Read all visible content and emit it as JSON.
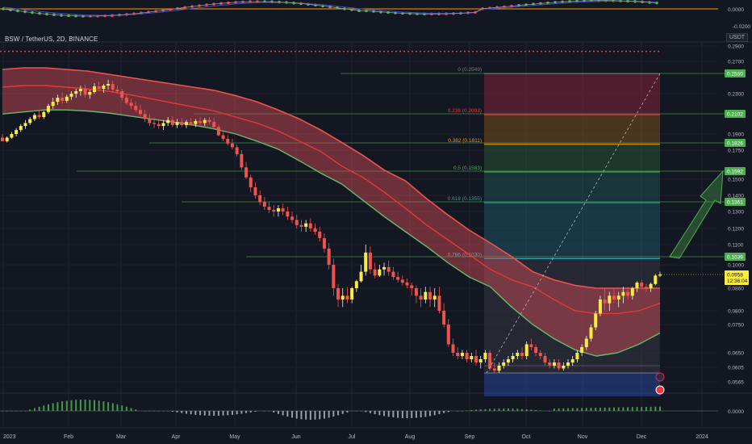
{
  "header": {
    "symbol": "BSW / TetherUS, 2D, BINANCE",
    "unit": "USDT"
  },
  "oscillator_top": {
    "ticks": [
      "0.0000",
      "-0.0200"
    ]
  },
  "oscillator_bottom": {
    "ticks": [
      "0.0000"
    ]
  },
  "price_axis": {
    "ticks": [
      {
        "value": 0.29,
        "label": "0.2900"
      },
      {
        "value": 0.27,
        "label": "0.2700"
      },
      {
        "value": 0.23,
        "label": "0.2300"
      },
      {
        "value": 0.19,
        "label": "0.1900"
      },
      {
        "value": 0.175,
        "label": "0.1750"
      },
      {
        "value": 0.15,
        "label": "0.1500"
      },
      {
        "value": 0.14,
        "label": "0.1400"
      },
      {
        "value": 0.13,
        "label": "0.1300"
      },
      {
        "value": 0.12,
        "label": "0.1200"
      },
      {
        "value": 0.11,
        "label": "0.1100"
      },
      {
        "value": 0.1,
        "label": "0.1000"
      },
      {
        "value": 0.086,
        "label": "0.0860"
      },
      {
        "value": 0.08,
        "label": "0.0800"
      },
      {
        "value": 0.075,
        "label": "0.0750"
      },
      {
        "value": 0.065,
        "label": "0.0650"
      },
      {
        "value": 0.0605,
        "label": "0.0605"
      },
      {
        "value": 0.0565,
        "label": "0.0565"
      }
    ],
    "level_badges": [
      {
        "value": 0.255,
        "label": "0.2550"
      },
      {
        "value": 0.2102,
        "label": "0.2102"
      },
      {
        "value": 0.1826,
        "label": "0.1826"
      },
      {
        "value": 0.1592,
        "label": "0.1592"
      },
      {
        "value": 0.1361,
        "label": "0.1361"
      },
      {
        "value": 0.1039,
        "label": "0.1039"
      }
    ],
    "current_price": {
      "value": 0.0958,
      "label": "0.0958",
      "countdown": "12:36:04",
      "color": "#ffeb3b"
    }
  },
  "time_axis": {
    "labels": [
      "2023",
      "Feb",
      "Mar",
      "Apr",
      "May",
      "Jun",
      "Jul",
      "Aug",
      "Sep",
      "Oct",
      "Nov",
      "Dec",
      "2024"
    ]
  },
  "chart_data": {
    "type": "candlestick",
    "title": "BSW / TetherUS, 2D, BINANCE",
    "ylim": [
      0.0535,
      0.31
    ],
    "candles": [
      [
        0.187,
        0.19,
        0.184,
        0.184
      ],
      [
        0.184,
        0.188,
        0.183,
        0.187
      ],
      [
        0.187,
        0.192,
        0.186,
        0.19
      ],
      [
        0.19,
        0.196,
        0.188,
        0.194
      ],
      [
        0.194,
        0.2,
        0.192,
        0.198
      ],
      [
        0.198,
        0.204,
        0.195,
        0.201
      ],
      [
        0.201,
        0.207,
        0.199,
        0.205
      ],
      [
        0.205,
        0.211,
        0.203,
        0.209
      ],
      [
        0.209,
        0.214,
        0.205,
        0.207
      ],
      [
        0.207,
        0.213,
        0.205,
        0.212
      ],
      [
        0.212,
        0.22,
        0.21,
        0.218
      ],
      [
        0.218,
        0.226,
        0.215,
        0.222
      ],
      [
        0.222,
        0.229,
        0.219,
        0.226
      ],
      [
        0.226,
        0.231,
        0.22,
        0.223
      ],
      [
        0.223,
        0.229,
        0.221,
        0.227
      ],
      [
        0.227,
        0.233,
        0.224,
        0.23
      ],
      [
        0.23,
        0.236,
        0.226,
        0.233
      ],
      [
        0.233,
        0.24,
        0.228,
        0.236
      ],
      [
        0.236,
        0.241,
        0.226,
        0.229
      ],
      [
        0.229,
        0.235,
        0.225,
        0.232
      ],
      [
        0.232,
        0.243,
        0.23,
        0.239
      ],
      [
        0.239,
        0.245,
        0.233,
        0.236
      ],
      [
        0.236,
        0.242,
        0.231,
        0.24
      ],
      [
        0.24,
        0.247,
        0.235,
        0.242
      ],
      [
        0.242,
        0.246,
        0.232,
        0.235
      ],
      [
        0.235,
        0.24,
        0.23,
        0.233
      ],
      [
        0.233,
        0.236,
        0.223,
        0.226
      ],
      [
        0.226,
        0.23,
        0.219,
        0.221
      ],
      [
        0.221,
        0.225,
        0.215,
        0.218
      ],
      [
        0.218,
        0.222,
        0.212,
        0.214
      ],
      [
        0.214,
        0.219,
        0.208,
        0.21
      ],
      [
        0.21,
        0.214,
        0.202,
        0.205
      ],
      [
        0.205,
        0.21,
        0.198,
        0.201
      ],
      [
        0.201,
        0.206,
        0.196,
        0.2
      ],
      [
        0.2,
        0.205,
        0.195,
        0.198
      ],
      [
        0.198,
        0.204,
        0.194,
        0.201
      ],
      [
        0.201,
        0.207,
        0.198,
        0.204
      ],
      [
        0.204,
        0.208,
        0.197,
        0.199
      ],
      [
        0.199,
        0.205,
        0.196,
        0.202
      ],
      [
        0.202,
        0.206,
        0.197,
        0.199
      ],
      [
        0.199,
        0.204,
        0.196,
        0.202
      ],
      [
        0.202,
        0.206,
        0.198,
        0.2
      ],
      [
        0.2,
        0.205,
        0.197,
        0.203
      ],
      [
        0.203,
        0.207,
        0.199,
        0.201
      ],
      [
        0.201,
        0.206,
        0.198,
        0.204
      ],
      [
        0.204,
        0.207,
        0.2,
        0.202
      ],
      [
        0.202,
        0.206,
        0.196,
        0.197
      ],
      [
        0.197,
        0.199,
        0.188,
        0.189
      ],
      [
        0.189,
        0.192,
        0.184,
        0.186
      ],
      [
        0.186,
        0.189,
        0.18,
        0.182
      ],
      [
        0.182,
        0.186,
        0.176,
        0.178
      ],
      [
        0.178,
        0.181,
        0.17,
        0.172
      ],
      [
        0.172,
        0.175,
        0.16,
        0.162
      ],
      [
        0.162,
        0.166,
        0.15,
        0.152
      ],
      [
        0.152,
        0.155,
        0.142,
        0.145
      ],
      [
        0.145,
        0.148,
        0.138,
        0.14
      ],
      [
        0.14,
        0.143,
        0.134,
        0.136
      ],
      [
        0.136,
        0.139,
        0.131,
        0.133
      ],
      [
        0.133,
        0.136,
        0.129,
        0.131
      ],
      [
        0.131,
        0.134,
        0.127,
        0.13
      ],
      [
        0.13,
        0.134,
        0.127,
        0.132
      ],
      [
        0.132,
        0.135,
        0.128,
        0.13
      ],
      [
        0.13,
        0.133,
        0.125,
        0.127
      ],
      [
        0.127,
        0.13,
        0.123,
        0.125
      ],
      [
        0.125,
        0.128,
        0.12,
        0.122
      ],
      [
        0.122,
        0.125,
        0.118,
        0.121
      ],
      [
        0.121,
        0.125,
        0.118,
        0.123
      ],
      [
        0.123,
        0.126,
        0.118,
        0.12
      ],
      [
        0.12,
        0.123,
        0.116,
        0.118
      ],
      [
        0.118,
        0.121,
        0.112,
        0.114
      ],
      [
        0.114,
        0.117,
        0.106,
        0.108
      ],
      [
        0.108,
        0.111,
        0.098,
        0.1
      ],
      [
        0.1,
        0.103,
        0.084,
        0.086
      ],
      [
        0.086,
        0.089,
        0.081,
        0.083
      ],
      [
        0.083,
        0.086,
        0.081,
        0.084
      ],
      [
        0.084,
        0.087,
        0.082,
        0.083
      ],
      [
        0.083,
        0.087,
        0.082,
        0.086
      ],
      [
        0.086,
        0.092,
        0.085,
        0.091
      ],
      [
        0.091,
        0.1,
        0.09,
        0.097
      ],
      [
        0.097,
        0.11,
        0.095,
        0.106
      ],
      [
        0.106,
        0.109,
        0.096,
        0.098
      ],
      [
        0.098,
        0.101,
        0.093,
        0.095
      ],
      [
        0.095,
        0.1,
        0.094,
        0.098
      ],
      [
        0.098,
        0.101,
        0.095,
        0.099
      ],
      [
        0.099,
        0.102,
        0.095,
        0.097
      ],
      [
        0.097,
        0.099,
        0.092,
        0.094
      ],
      [
        0.094,
        0.097,
        0.09,
        0.092
      ],
      [
        0.092,
        0.095,
        0.088,
        0.09
      ],
      [
        0.09,
        0.093,
        0.086,
        0.088
      ],
      [
        0.088,
        0.09,
        0.084,
        0.086
      ],
      [
        0.086,
        0.088,
        0.082,
        0.084
      ],
      [
        0.084,
        0.086,
        0.081,
        0.083
      ],
      [
        0.083,
        0.087,
        0.082,
        0.085
      ],
      [
        0.085,
        0.087,
        0.081,
        0.083
      ],
      [
        0.083,
        0.086,
        0.081,
        0.084
      ],
      [
        0.084,
        0.087,
        0.079,
        0.08
      ],
      [
        0.08,
        0.082,
        0.074,
        0.075
      ],
      [
        0.075,
        0.077,
        0.067,
        0.068
      ],
      [
        0.068,
        0.07,
        0.064,
        0.065
      ],
      [
        0.065,
        0.067,
        0.063,
        0.064
      ],
      [
        0.064,
        0.066,
        0.063,
        0.065
      ],
      [
        0.065,
        0.066,
        0.062,
        0.063
      ],
      [
        0.063,
        0.065,
        0.062,
        0.064
      ],
      [
        0.064,
        0.066,
        0.061,
        0.062
      ],
      [
        0.062,
        0.064,
        0.06,
        0.063
      ],
      [
        0.063,
        0.066,
        0.062,
        0.065
      ],
      [
        0.065,
        0.066,
        0.059,
        0.06
      ],
      [
        0.06,
        0.062,
        0.058,
        0.059
      ],
      [
        0.059,
        0.062,
        0.058,
        0.061
      ],
      [
        0.061,
        0.063,
        0.06,
        0.062
      ],
      [
        0.062,
        0.064,
        0.061,
        0.063
      ],
      [
        0.063,
        0.065,
        0.062,
        0.064
      ],
      [
        0.064,
        0.066,
        0.063,
        0.065
      ],
      [
        0.065,
        0.067,
        0.063,
        0.064
      ],
      [
        0.064,
        0.069,
        0.063,
        0.068
      ],
      [
        0.068,
        0.07,
        0.066,
        0.067
      ],
      [
        0.067,
        0.068,
        0.064,
        0.065
      ],
      [
        0.065,
        0.066,
        0.063,
        0.064
      ],
      [
        0.064,
        0.065,
        0.061,
        0.062
      ],
      [
        0.062,
        0.063,
        0.06,
        0.061
      ],
      [
        0.061,
        0.063,
        0.06,
        0.062
      ],
      [
        0.062,
        0.063,
        0.059,
        0.06
      ],
      [
        0.06,
        0.062,
        0.059,
        0.061
      ],
      [
        0.061,
        0.063,
        0.06,
        0.062
      ],
      [
        0.062,
        0.064,
        0.061,
        0.063
      ],
      [
        0.063,
        0.066,
        0.062,
        0.065
      ],
      [
        0.065,
        0.068,
        0.064,
        0.067
      ],
      [
        0.067,
        0.071,
        0.066,
        0.07
      ],
      [
        0.07,
        0.075,
        0.069,
        0.074
      ],
      [
        0.074,
        0.08,
        0.073,
        0.079
      ],
      [
        0.079,
        0.084,
        0.078,
        0.083
      ],
      [
        0.083,
        0.086,
        0.08,
        0.082
      ],
      [
        0.082,
        0.085,
        0.08,
        0.084
      ],
      [
        0.084,
        0.086,
        0.082,
        0.083
      ],
      [
        0.083,
        0.085,
        0.081,
        0.084
      ],
      [
        0.084,
        0.087,
        0.082,
        0.085
      ],
      [
        0.085,
        0.087,
        0.083,
        0.084
      ],
      [
        0.084,
        0.087,
        0.083,
        0.086
      ],
      [
        0.086,
        0.091,
        0.085,
        0.09
      ],
      [
        0.09,
        0.092,
        0.086,
        0.087
      ],
      [
        0.087,
        0.089,
        0.085,
        0.086
      ],
      [
        0.086,
        0.09,
        0.085,
        0.089
      ],
      [
        0.089,
        0.096,
        0.088,
        0.095
      ],
      [
        0.095,
        0.097,
        0.094,
        0.0958
      ]
    ],
    "ma_upper": [
      0.26,
      0.262,
      0.262,
      0.26,
      0.258,
      0.254,
      0.25,
      0.246,
      0.242,
      0.238,
      0.234,
      0.228,
      0.222,
      0.214,
      0.205,
      0.194,
      0.183,
      0.171,
      0.16,
      0.149,
      0.138,
      0.128,
      0.119,
      0.111,
      0.104,
      0.097,
      0.092,
      0.088,
      0.086,
      0.086,
      0.086,
      0.086
    ],
    "ma_mid": [
      0.238,
      0.24,
      0.24,
      0.238,
      0.236,
      0.233,
      0.229,
      0.225,
      0.221,
      0.217,
      0.213,
      0.207,
      0.201,
      0.193,
      0.184,
      0.174,
      0.163,
      0.152,
      0.142,
      0.132,
      0.122,
      0.113,
      0.105,
      0.098,
      0.092,
      0.087,
      0.083,
      0.08,
      0.079,
      0.079,
      0.08,
      0.082
    ],
    "ma_lower": [
      0.21,
      0.212,
      0.214,
      0.214,
      0.213,
      0.211,
      0.208,
      0.205,
      0.202,
      0.199,
      0.195,
      0.19,
      0.184,
      0.176,
      0.167,
      0.157,
      0.147,
      0.137,
      0.127,
      0.118,
      0.109,
      0.101,
      0.094,
      0.087,
      0.081,
      0.075,
      0.07,
      0.066,
      0.064,
      0.065,
      0.068,
      0.072
    ],
    "fibonacci": {
      "levels": [
        {
          "ratio": "0",
          "price": 0.2549,
          "label": "0 (0.2549)",
          "color": "#787b86",
          "fill": "rgba(120,30,50,0.0)"
        },
        {
          "ratio": "0.236",
          "price": 0.2093,
          "label": "0.236 (0.2093)",
          "color": "#f23645",
          "fill": "rgba(130,35,55,0.55)"
        },
        {
          "ratio": "0.382",
          "price": 0.1811,
          "label": "0.382 (0.1811)",
          "color": "#ff9800",
          "fill": "rgba(120,80,30,0.55)"
        },
        {
          "ratio": "0.5",
          "price": 0.1583,
          "label": "0.5 (0.1583)",
          "color": "#4caf50",
          "fill": "rgba(40,90,50,0.5)"
        },
        {
          "ratio": "0.618",
          "price": 0.1355,
          "label": "0.618 (0.1355)",
          "color": "#26a69a",
          "fill": "rgba(30,85,80,0.5)"
        },
        {
          "ratio": "0.786",
          "price": 0.103,
          "label": "0.786 (0.1030)",
          "color": "#26c6da",
          "fill": "rgba(30,90,105,0.5)"
        },
        {
          "ratio": "1",
          "price": 0.058,
          "label": "",
          "color": "#787b86",
          "fill": "rgba(60,60,70,0.45)"
        }
      ]
    },
    "resistance_level": 0.283,
    "targets": [
      0.255,
      0.2102,
      0.1826,
      0.1592,
      0.1361,
      0.1039,
      0.061
    ]
  }
}
